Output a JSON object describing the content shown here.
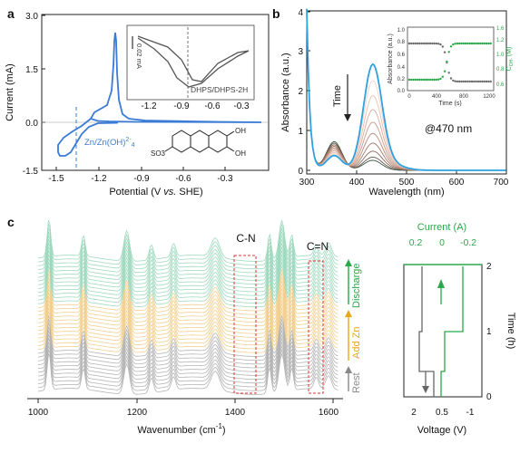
{
  "panel_a": {
    "letter": "a",
    "ylabel": "Current (mA)",
    "xlabel": "Potential (V vs. SHE)",
    "xlabel_parts": [
      "Potential (V ",
      "vs.",
      " SHE)"
    ],
    "yticks": [
      "3.0",
      "1.5",
      "0.0",
      "-1.5"
    ],
    "xticks": [
      "-1.5",
      "-1.2",
      "-0.9",
      "-0.6",
      "-0.3"
    ],
    "annotation": "Zn/Zn(OH)",
    "annotation_sup": "2-",
    "annotation_sub": "4",
    "inset": {
      "label": "DHPS/DHPS-2H",
      "scale_bar": "0.02 mA",
      "xticks": [
        "-1.2",
        "-0.9",
        "-0.6",
        "-0.3"
      ]
    },
    "molecule_labels": [
      "OH",
      "OH",
      "SO3"
    ],
    "colors": {
      "cv": "#3a7bd5",
      "inset": "#555555",
      "dash": "#3a7bd5"
    }
  },
  "panel_b": {
    "letter": "b",
    "ylabel": "Absorbance (a.u.)",
    "xlabel": "Wavelength (nm)",
    "yticks": [
      "0",
      "1",
      "2",
      "3",
      "4"
    ],
    "xticks": [
      "300",
      "400",
      "500",
      "600",
      "700"
    ],
    "time_label": "Time",
    "annotation": "@470 nm",
    "inset": {
      "ylabel_left": "Absorbance (a.u.)",
      "ylabel_right": "C",
      "ylabel_right_sub": "OH-",
      "ylabel_right_tail": " (M)",
      "xlabel": "Time (s)",
      "yticks_left": [
        "0.0",
        "0.2",
        "0.4",
        "0.6",
        "0.8",
        "1.0"
      ],
      "yticks_right": [
        "0.6",
        "0.8",
        "1.0",
        "1.2"
      ],
      "right_top": "1.6",
      "xticks": [
        "0",
        "400",
        "800",
        "1200"
      ]
    },
    "colors": {
      "final": "#2fa0e0",
      "gray": "#6b6b6b",
      "green": "#2aa84a"
    }
  },
  "panel_c": {
    "letter": "c",
    "xlabel": "Wavenumber (cm",
    "xlabel_sup": "-1",
    "xlabel_tail": ")",
    "xticks": [
      "1000",
      "1200",
      "1400",
      "1600"
    ],
    "annotations": [
      "C-N",
      "C=N"
    ],
    "stages": [
      {
        "label": "Rest",
        "color": "#888888"
      },
      {
        "label": "Add Zn",
        "color": "#e6a817"
      },
      {
        "label": "Discharge",
        "color": "#2aa84a"
      }
    ],
    "colors": {
      "gray": "#b4b4b4",
      "orange": "#f2cf8e",
      "teal": "#9fd9bf",
      "box": "#e03030"
    }
  },
  "panel_c_side": {
    "title": "Current (A)",
    "top_ticks": [
      "0.2",
      "0",
      "-0.2"
    ],
    "bottom_ticks": [
      "2",
      "0.5",
      "-1"
    ],
    "xlabel": "Voltage (V)",
    "ylabel": "Time (h)",
    "yticks": [
      "0",
      "1",
      "2"
    ],
    "colors": {
      "current": "#2aa84a",
      "voltage": "#666666"
    }
  }
}
